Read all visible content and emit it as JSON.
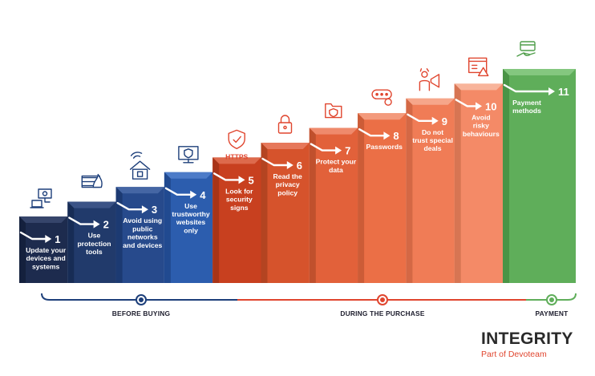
{
  "steps": [
    {
      "number": "1",
      "lines": [
        "Update your",
        "devices and",
        "systems"
      ],
      "front": "#1d2b4e",
      "top": "#36456b",
      "side": "#14203d",
      "icon": "laptop-icon",
      "icon_color": "#1d3f7a"
    },
    {
      "number": "2",
      "lines": [
        "Use",
        "protection",
        "tools"
      ],
      "front": "#213a6b",
      "top": "#3b5386",
      "side": "#172c55",
      "icon": "firewall-icon",
      "icon_color": "#1d3f7a"
    },
    {
      "number": "3",
      "lines": [
        "Avoid using",
        "public",
        "networks",
        "and devices"
      ],
      "front": "#274a8c",
      "top": "#4566a4",
      "side": "#1c3a72",
      "icon": "home-network-icon",
      "icon_color": "#1d3f7a"
    },
    {
      "number": "4",
      "lines": [
        "Use",
        "trustworthy",
        "websites",
        "only"
      ],
      "front": "#2c5dae",
      "top": "#4c7bc8",
      "side": "#214a90",
      "icon": "secure-monitor-icon",
      "icon_color": "#1d3f7a"
    },
    {
      "number": "5",
      "lines": [
        "Look for",
        "security",
        "signs"
      ],
      "front": "#c8401f",
      "top": "#dd6a4c",
      "side": "#a83418",
      "icon": "shield-check-icon",
      "icon_color": "#e0452e"
    },
    {
      "number": "6",
      "lines": [
        "Read the",
        "privacy",
        "policy"
      ],
      "front": "#d6532c",
      "top": "#e6785b",
      "side": "#b44421",
      "icon": "padlock-icon",
      "icon_color": "#e0452e"
    },
    {
      "number": "7",
      "lines": [
        "Protect your",
        "data"
      ],
      "front": "#e2613a",
      "top": "#ef8a6c",
      "side": "#c0502d",
      "icon": "secure-folder-icon",
      "icon_color": "#e0452e"
    },
    {
      "number": "8",
      "lines": [
        "Passwords"
      ],
      "front": "#eb6f46",
      "top": "#f39a7c",
      "side": "#cc5c37",
      "icon": "password-icon",
      "icon_color": "#e0452e"
    },
    {
      "number": "9",
      "lines": [
        "Do not",
        "trust special",
        "deals"
      ],
      "front": "#f07c56",
      "top": "#f6a68a",
      "side": "#d46845",
      "icon": "megaphone-icon",
      "icon_color": "#e0452e"
    },
    {
      "number": "10",
      "lines": [
        "Avoid",
        "risky",
        "behaviours"
      ],
      "front": "#f48a67",
      "top": "#f8b49b",
      "side": "#d77553",
      "icon": "warning-browser-icon",
      "icon_color": "#e0452e"
    },
    {
      "number": "11",
      "lines": [
        "Payment",
        "methods"
      ],
      "front": "#5fae5a",
      "top": "#84c77f",
      "side": "#4a9446",
      "icon": "card-payment-icon",
      "icon_color": "#4f9e4a"
    }
  ],
  "https_label": "HTTPS",
  "timeline": {
    "phases": [
      {
        "label": "BEFORE BUYING",
        "color": "#1d3f7a"
      },
      {
        "label": "DURING THE PURCHASE",
        "color": "#e0452e"
      },
      {
        "label": "PAYMENT",
        "color": "#5fae5a"
      }
    ]
  },
  "brand": {
    "name": "INTEGRITY",
    "tagline": "Part of Devoteam"
  }
}
